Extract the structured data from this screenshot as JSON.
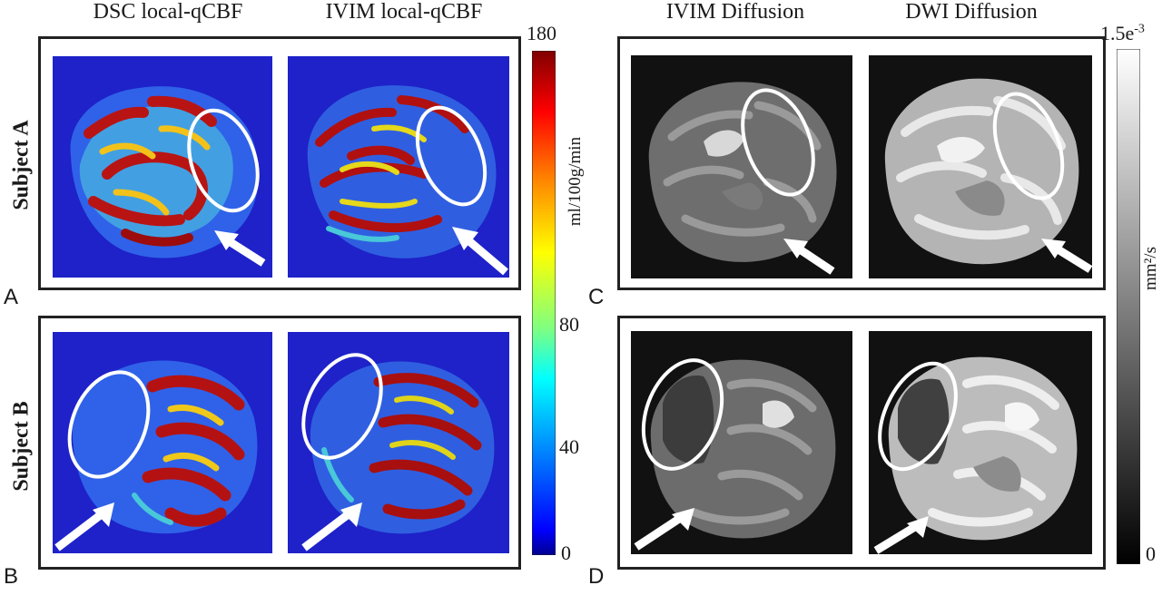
{
  "columns": {
    "dsc_local_qcbf": "DSC local-qCBF",
    "ivim_local_qcbf": "IVIM local-qCBF",
    "ivim_diffusion": "IVIM Diffusion",
    "dwi_diffusion": "DWI Diffusion"
  },
  "rows": {
    "subject_a": "Subject A",
    "subject_b": "Subject B"
  },
  "panels": {
    "a": "A",
    "b": "B",
    "c": "C",
    "d": "D"
  },
  "cbf_colorbar": {
    "unit": "ml/100g/min",
    "ticks": {
      "max": "180",
      "t80": "80",
      "t40": "40",
      "min": "0"
    },
    "colors": [
      "#800000",
      "#ff0000",
      "#ff8000",
      "#ffff00",
      "#80ff80",
      "#00ffff",
      "#0080ff",
      "#0000ff",
      "#00008f"
    ]
  },
  "diffusion_colorbar": {
    "unit": "mm²/s",
    "ticks": {
      "max_base": "1.5e",
      "max_exp": "-3",
      "min": "0"
    },
    "colors": [
      "#ffffff",
      "#000000"
    ]
  },
  "colors": {
    "cbf_background": "#1e22c8",
    "dark_background": "#111111",
    "annotation": "#ffffff"
  }
}
